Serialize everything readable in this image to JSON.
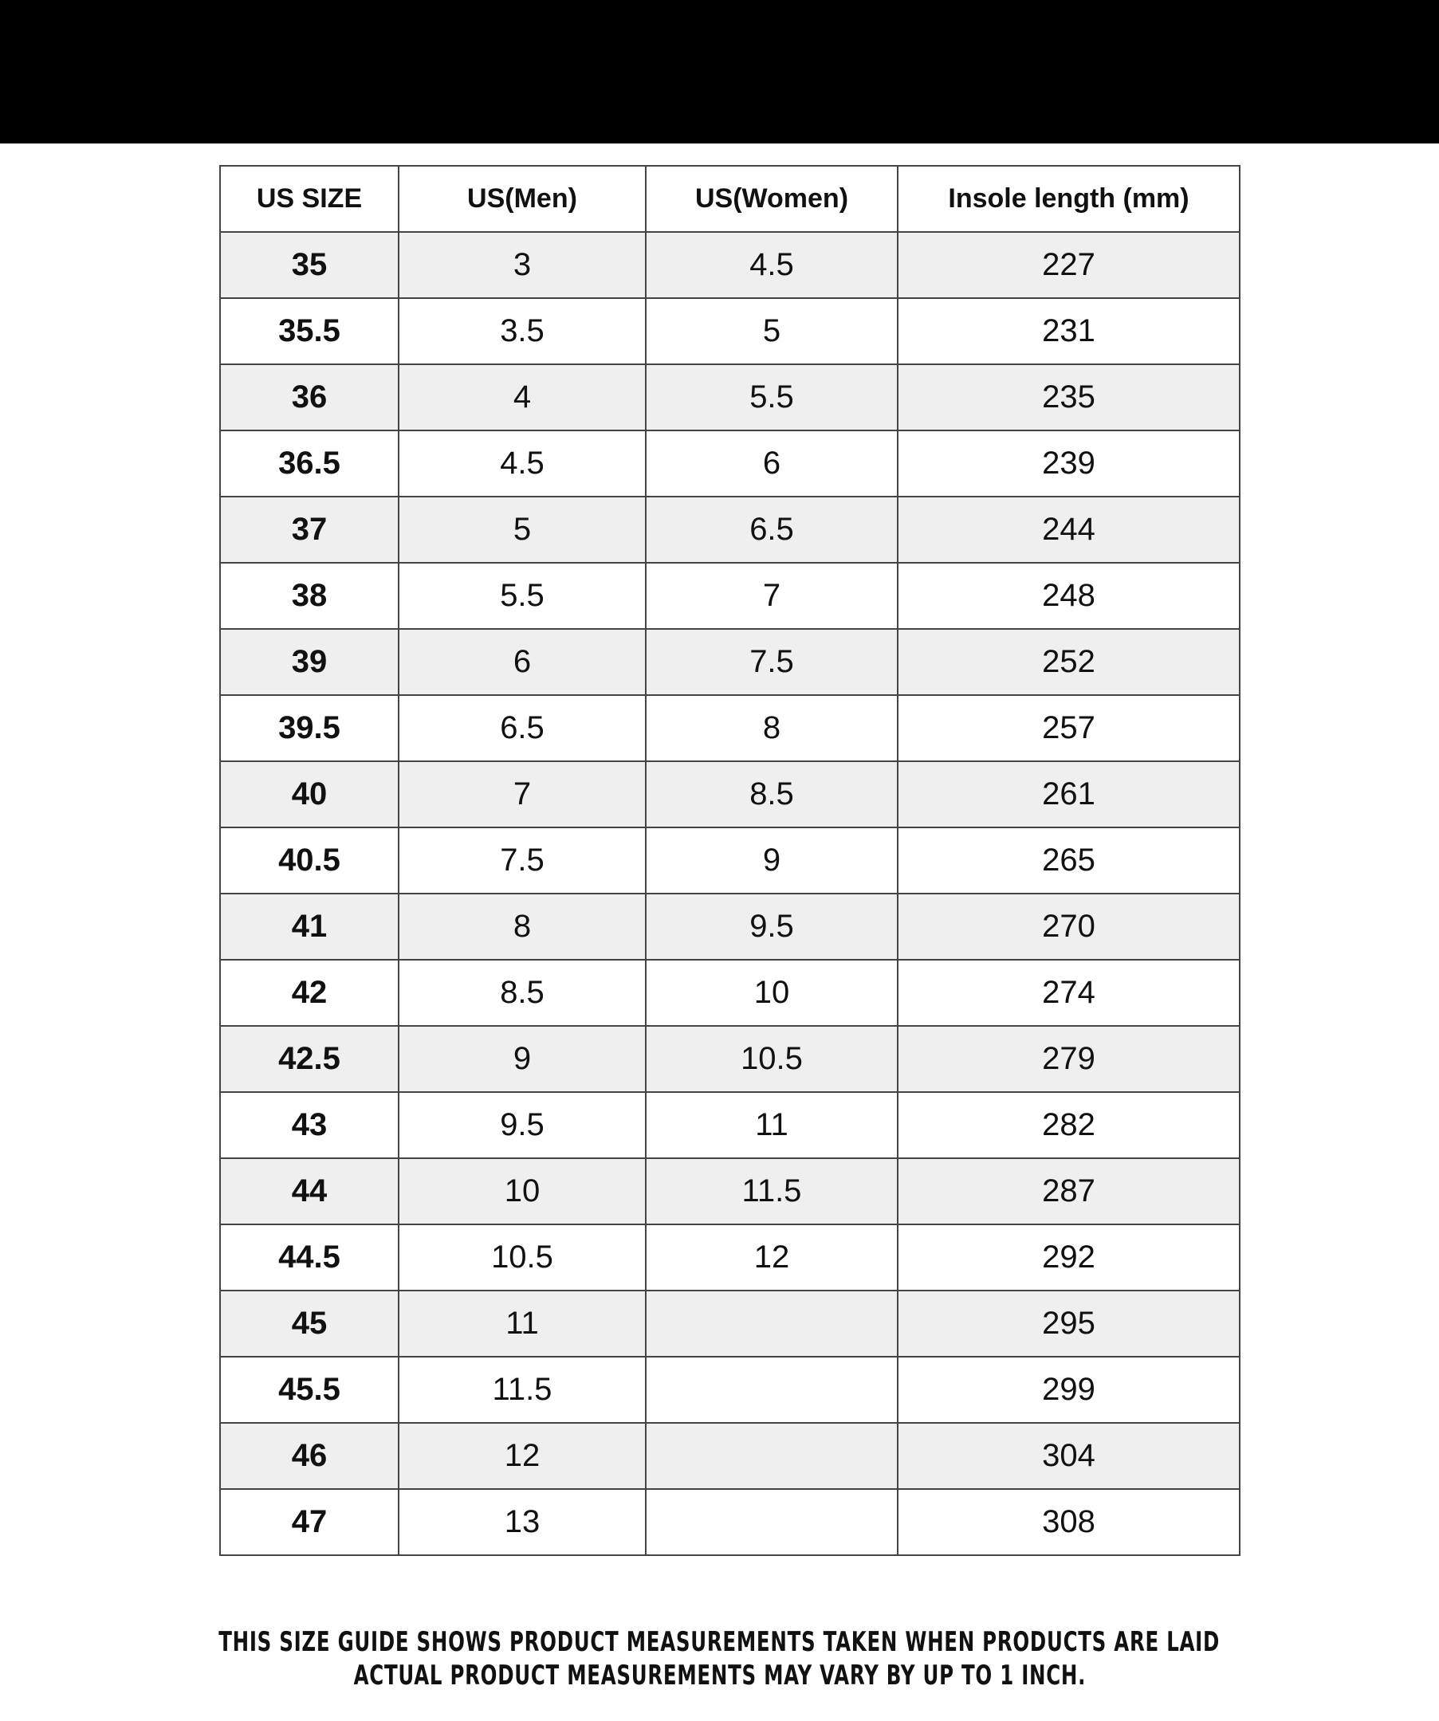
{
  "header": [
    "US SIZE",
    "US(Men)",
    "US(Women)",
    "Insole length (mm)"
  ],
  "rows": [
    [
      "35",
      "3",
      "4.5",
      "227"
    ],
    [
      "35.5",
      "3.5",
      "5",
      "231"
    ],
    [
      "36",
      "4",
      "5.5",
      "235"
    ],
    [
      "36.5",
      "4.5",
      "6",
      "239"
    ],
    [
      "37",
      "5",
      "6.5",
      "244"
    ],
    [
      "38",
      "5.5",
      "7",
      "248"
    ],
    [
      "39",
      "6",
      "7.5",
      "252"
    ],
    [
      "39.5",
      "6.5",
      "8",
      "257"
    ],
    [
      "40",
      "7",
      "8.5",
      "261"
    ],
    [
      "40.5",
      "7.5",
      "9",
      "265"
    ],
    [
      "41",
      "8",
      "9.5",
      "270"
    ],
    [
      "42",
      "8.5",
      "10",
      "274"
    ],
    [
      "42.5",
      "9",
      "10.5",
      "279"
    ],
    [
      "43",
      "9.5",
      "11",
      "282"
    ],
    [
      "44",
      "10",
      "11.5",
      "287"
    ],
    [
      "44.5",
      "10.5",
      "12",
      "292"
    ],
    [
      "45",
      "11",
      "",
      "295"
    ],
    [
      "45.5",
      "11.5",
      "",
      "299"
    ],
    [
      "46",
      "12",
      "",
      "304"
    ],
    [
      "47",
      "13",
      "",
      "308"
    ]
  ],
  "note": {
    "line1": "THIS SIZE GUIDE SHOWS PRODUCT MEASUREMENTS TAKEN WHEN PRODUCTS ARE LAID",
    "line2": "ACTUAL PRODUCT MEASUREMENTS MAY VARY BY UP TO 1 INCH."
  },
  "colors": {
    "band": "#000000",
    "row_shade": "#efefef",
    "border": "#444444"
  }
}
